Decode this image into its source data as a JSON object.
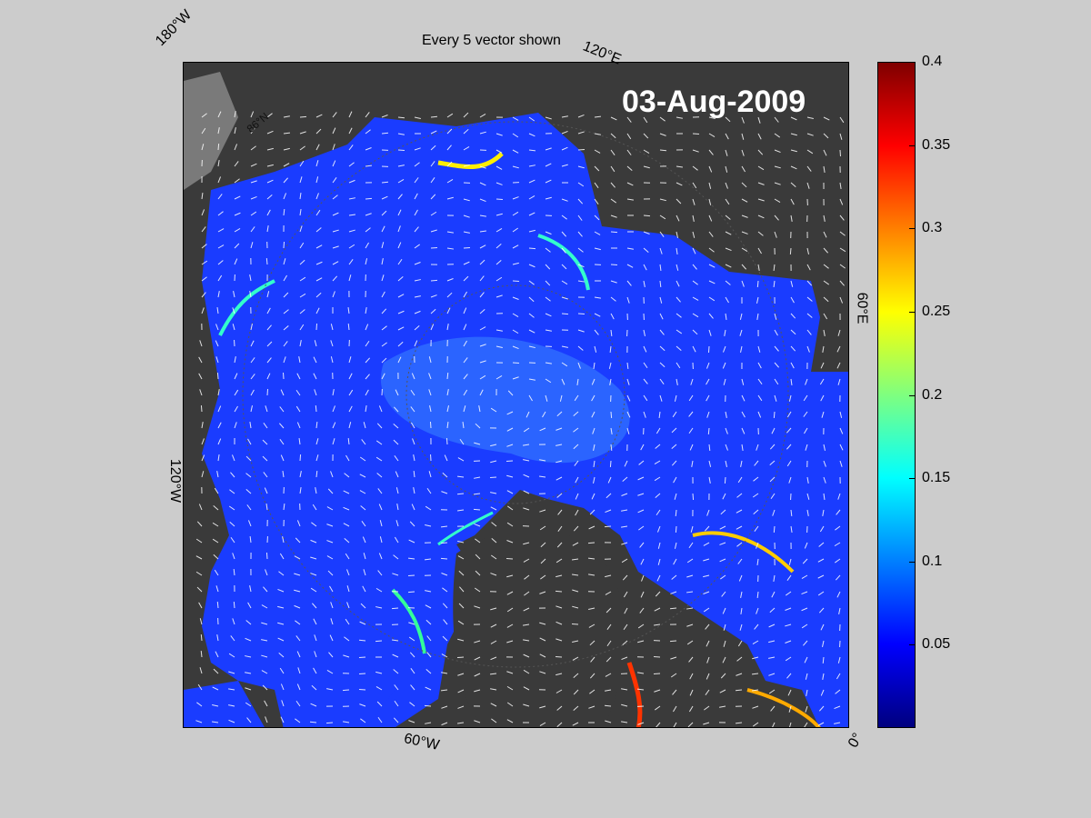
{
  "figure": {
    "title": "Every 5 vector shown",
    "date_label": "03-Aug-2009"
  },
  "map_labels": {
    "lon_180w": "180°W",
    "lon_120e": "120°E",
    "lon_60e": "60°E",
    "lon_120w": "120°W",
    "lon_60w": "60°W",
    "lon_0": "0°",
    "lat_86n": "86°N"
  },
  "colorbar": {
    "colormap": "jet",
    "min": 0,
    "max": 0.4,
    "ticks": [
      {
        "value": 0.4,
        "label": "0.4"
      },
      {
        "value": 0.35,
        "label": "0.35"
      },
      {
        "value": 0.3,
        "label": "0.3"
      },
      {
        "value": 0.25,
        "label": "0.25"
      },
      {
        "value": 0.2,
        "label": "0.2"
      },
      {
        "value": 0.15,
        "label": "0.15"
      },
      {
        "value": 0.1,
        "label": "0.1"
      },
      {
        "value": 0.05,
        "label": "0.05"
      }
    ]
  },
  "colors": {
    "land": "#3a3a3a",
    "ocean_field": "#1a3cff",
    "vectors": "#ffffff",
    "background": "#cccccc"
  }
}
